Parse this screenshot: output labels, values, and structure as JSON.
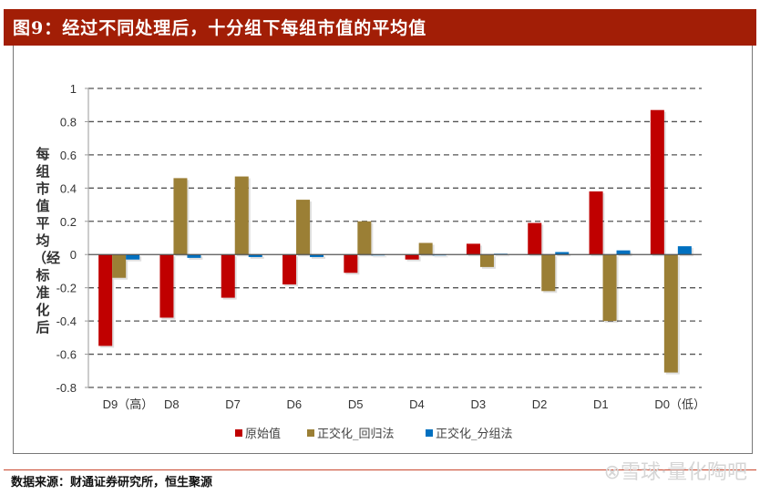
{
  "header": {
    "title": "图9：经过不同处理后，十分组下每组市值的平均值"
  },
  "footer": {
    "source": "数据来源：财通证券研究所，恒生聚源",
    "watermark": "⊗雪球·量化陶吧"
  },
  "chart_data": {
    "type": "bar",
    "title": "图9：经过不同处理后，十分组下每组市值的平均值",
    "xlabel": "",
    "ylabel": "每组市值平均（经标准化后",
    "ylim": [
      -0.8,
      1
    ],
    "yticks": [
      1,
      0.8,
      0.6,
      0.4,
      0.2,
      0,
      -0.2,
      -0.4,
      -0.6,
      -0.8
    ],
    "ytick_labels": [
      "1",
      "0.8",
      "0.6",
      "0.4",
      "0.2",
      "0",
      "-0.2",
      "-0.4",
      "-0.6",
      "-0.8"
    ],
    "grid": true,
    "legend": "bottom",
    "categories": [
      "D9（高）",
      "D8",
      "D7",
      "D6",
      "D5",
      "D4",
      "D3",
      "D2",
      "D1",
      "D0（低）"
    ],
    "series": [
      {
        "name": "原始值",
        "color": "#c00000",
        "values": [
          -0.55,
          -0.38,
          -0.26,
          -0.18,
          -0.11,
          -0.03,
          0.065,
          0.19,
          0.38,
          0.87
        ]
      },
      {
        "name": "正交化_回归法",
        "color": "#9b7f35",
        "values": [
          -0.14,
          0.46,
          0.47,
          0.33,
          0.2,
          0.07,
          -0.075,
          -0.22,
          -0.4,
          -0.71
        ]
      },
      {
        "name": "正交化_分组法",
        "color": "#0070c0",
        "values": [
          -0.03,
          -0.02,
          -0.015,
          -0.015,
          0.0,
          0.0,
          0.005,
          0.015,
          0.025,
          0.05
        ]
      }
    ]
  }
}
